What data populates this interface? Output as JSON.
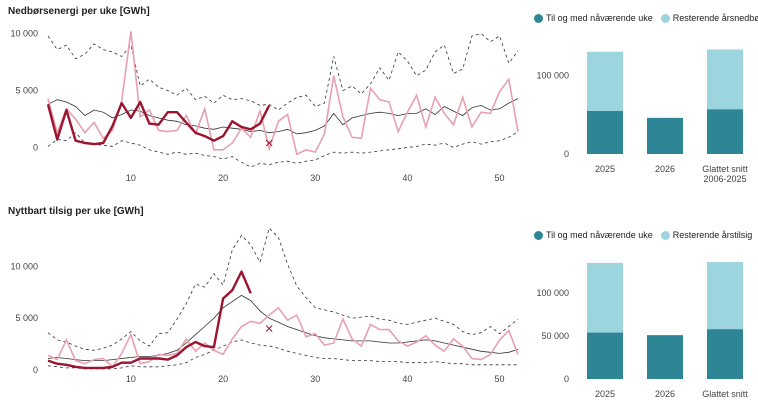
{
  "colors": {
    "current": "#9b1530",
    "previous": "#e8a0b0",
    "median": "#333333",
    "band": "#333333",
    "bar_dark": "#2e8596",
    "bar_light": "#9dd5de"
  },
  "panels": [
    {
      "title": "Nedbørsenergi per uke [GWh]",
      "chart_data": {
        "type": "line",
        "xlim": [
          1,
          52
        ],
        "ylim": [
          -1800,
          10500
        ],
        "x_ticks": [
          10,
          20,
          30,
          40,
          50
        ],
        "y_ticks": [
          {
            "v": 0,
            "l": "0"
          },
          {
            "v": 5000,
            "l": "5 000"
          },
          {
            "v": 10000,
            "l": "10 000"
          }
        ],
        "current": [
          3800,
          700,
          3300,
          600,
          400,
          300,
          400,
          1900,
          3900,
          2600,
          4000,
          2100,
          2000,
          3100,
          3100,
          2200,
          1300,
          1000,
          600,
          1000,
          2300,
          1800,
          1600,
          2100,
          3700
        ],
        "previous": [
          4300,
          1300,
          3400,
          2500,
          1300,
          2200,
          800,
          1500,
          4100,
          10200,
          2700,
          3300,
          1500,
          1400,
          1500,
          2800,
          1200,
          3400,
          -200,
          -200,
          400,
          1700,
          900,
          3200,
          -100,
          2300,
          2900,
          -600,
          -200,
          -400,
          1200,
          6300,
          2700,
          900,
          800,
          5200,
          4200,
          4000,
          1400,
          3100,
          4600,
          1800,
          4400,
          3000,
          2000,
          4400,
          1800,
          3100,
          3000,
          4900,
          6000,
          1400
        ],
        "median": [
          3800,
          4200,
          4000,
          3600,
          2800,
          3300,
          3100,
          2600,
          2900,
          3300,
          3200,
          2800,
          2600,
          2400,
          2300,
          2000,
          1900,
          1700,
          1600,
          1800,
          1700,
          1600,
          1400,
          1500,
          1300,
          1400,
          1600,
          1200,
          1300,
          1500,
          1900,
          3000,
          2000,
          2600,
          2800,
          3000,
          3100,
          3000,
          2800,
          3000,
          3000,
          3400,
          2900,
          3600,
          3200,
          2800,
          3500,
          3700,
          3300,
          3400,
          3900,
          4300
        ],
        "upper": [
          9800,
          8600,
          9000,
          7800,
          8200,
          9100,
          8600,
          8400,
          8000,
          9000,
          5400,
          6000,
          5300,
          5000,
          4600,
          5200,
          4200,
          4500,
          3900,
          4600,
          4200,
          4300,
          4100,
          3700,
          3800,
          3300,
          3900,
          4400,
          4600,
          3600,
          3900,
          8000,
          5000,
          5400,
          4700,
          5600,
          7000,
          5900,
          8400,
          7600,
          6300,
          6800,
          8400,
          9000,
          6500,
          6900,
          9800,
          10000,
          9300,
          9800,
          7400,
          8500
        ],
        "lower": [
          100,
          700,
          600,
          1300,
          400,
          300,
          200,
          100,
          600,
          400,
          200,
          -200,
          -400,
          -600,
          -400,
          -600,
          -500,
          -700,
          -800,
          -1000,
          -800,
          -1300,
          -1700,
          -1400,
          -1500,
          -1300,
          -1200,
          -1400,
          -1200,
          -1100,
          -700,
          -400,
          -500,
          -400,
          -500,
          -400,
          -300,
          -200,
          -100,
          0,
          100,
          300,
          200,
          400,
          0,
          300,
          500,
          300,
          500,
          600,
          900,
          1400
        ],
        "marker": {
          "x": 25,
          "y": 400
        }
      },
      "bar_chart": {
        "type": "bar",
        "legend": [
          "Til og med nåværende uke",
          "Resterende årsnedbør"
        ],
        "ylim": [
          0,
          145000
        ],
        "y_ticks": [
          {
            "v": 0,
            "l": "0"
          },
          {
            "v": 100000,
            "l": "100 000"
          }
        ],
        "categories": [
          {
            "label": "2025",
            "label2": "",
            "to_date": 55000,
            "rest": 75000
          },
          {
            "label": "2026",
            "label2": "",
            "to_date": 46000,
            "rest": 0
          },
          {
            "label": "Glattet snitt",
            "label2": "2006-2025",
            "to_date": 57000,
            "rest": 76000
          }
        ]
      }
    },
    {
      "title": "Nyttbart tilsig per uke [GWh]",
      "chart_data": {
        "type": "line",
        "xlim": [
          1,
          52
        ],
        "ylim": [
          -200,
          14000
        ],
        "x_ticks": [
          10,
          20,
          30,
          40,
          50
        ],
        "y_ticks": [
          {
            "v": 0,
            "l": "0"
          },
          {
            "v": 5000,
            "l": "5 000"
          },
          {
            "v": 10000,
            "l": "10 000"
          }
        ],
        "current": [
          900,
          600,
          500,
          300,
          200,
          200,
          200,
          300,
          700,
          700,
          1100,
          1100,
          1100,
          1000,
          1400,
          2200,
          2700,
          2300,
          2200,
          6900,
          7700,
          9500,
          7400
        ],
        "previous": [
          1400,
          1000,
          2900,
          900,
          600,
          1000,
          1100,
          300,
          1600,
          3400,
          600,
          800,
          1500,
          1400,
          1600,
          3000,
          1800,
          2600,
          1900,
          1500,
          3000,
          4200,
          4700,
          4500,
          5300,
          6000,
          4800,
          5300,
          3200,
          3500,
          2400,
          2600,
          4900,
          3000,
          2300,
          4400,
          3900,
          3900,
          2800,
          2300,
          2700,
          3300,
          2400,
          1800,
          3000,
          2300,
          1100,
          1000,
          1500,
          2900,
          3800,
          1500
        ],
        "median": [
          1100,
          1200,
          1100,
          1000,
          900,
          900,
          900,
          1000,
          1100,
          1200,
          1300,
          1300,
          1400,
          1600,
          1900,
          2600,
          3400,
          4200,
          5000,
          6000,
          6600,
          7200,
          6700,
          5700,
          5000,
          4600,
          4200,
          3900,
          3600,
          3300,
          3100,
          3000,
          2900,
          2800,
          2800,
          2800,
          2700,
          2600,
          2600,
          2700,
          2800,
          2900,
          2800,
          2600,
          2400,
          2200,
          2000,
          1800,
          1700,
          1600,
          1700,
          2000
        ],
        "upper": [
          3600,
          2900,
          2700,
          2300,
          2000,
          1900,
          2100,
          2400,
          3000,
          3700,
          2800,
          2300,
          3500,
          3600,
          4900,
          6400,
          8300,
          8000,
          9300,
          8200,
          11600,
          13000,
          12100,
          10400,
          13700,
          12800,
          10200,
          8100,
          7000,
          6000,
          5800,
          5600,
          5300,
          5000,
          5100,
          5200,
          4900,
          4800,
          4500,
          4400,
          4600,
          4800,
          5000,
          4700,
          4400,
          3700,
          3400,
          3600,
          4200,
          3500,
          4200,
          4900
        ],
        "lower": [
          400,
          300,
          200,
          200,
          100,
          100,
          100,
          100,
          200,
          400,
          300,
          300,
          300,
          400,
          500,
          700,
          1200,
          1500,
          1900,
          2300,
          2700,
          2900,
          2600,
          2400,
          2300,
          2100,
          1800,
          1600,
          1400,
          1200,
          1100,
          1100,
          1000,
          900,
          900,
          900,
          800,
          800,
          800,
          700,
          700,
          700,
          800,
          700,
          600,
          600,
          500,
          500,
          500,
          500,
          500,
          500
        ],
        "marker": {
          "x": 25,
          "y": 4000
        }
      },
      "bar_chart": {
        "type": "bar",
        "legend": [
          "Til og med nåværende uke",
          "Resterende årstilsig"
        ],
        "ylim": [
          0,
          150000
        ],
        "y_ticks": [
          {
            "v": 0,
            "l": "0"
          },
          {
            "v": 50000,
            "l": "50 000"
          },
          {
            "v": 100000,
            "l": "100 000"
          }
        ],
        "categories": [
          {
            "label": "2025",
            "label2": "",
            "to_date": 54000,
            "rest": 81000
          },
          {
            "label": "2026",
            "label2": "",
            "to_date": 51000,
            "rest": 0
          },
          {
            "label": "Glattet snitt",
            "label2": "",
            "to_date": 58000,
            "rest": 78000
          }
        ]
      }
    }
  ]
}
